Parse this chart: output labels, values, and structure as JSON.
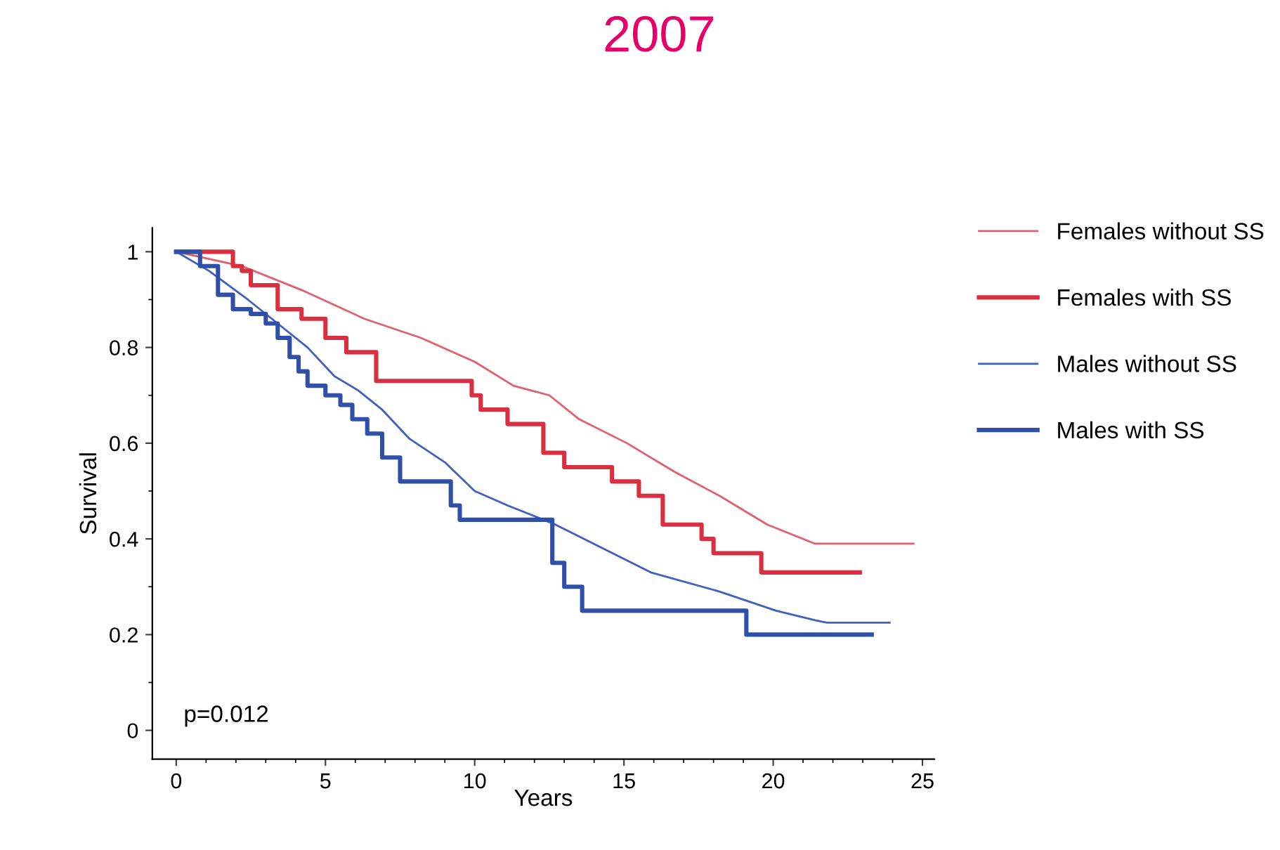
{
  "chart_data": {
    "type": "line",
    "title": "2007",
    "xlabel": "Years",
    "ylabel": "Survival",
    "annotations": [
      "p=0.012"
    ],
    "xlim": [
      -0.8,
      25.4
    ],
    "ylim": [
      -0.06,
      1.05
    ],
    "xticks": [
      0,
      5,
      10,
      15,
      20,
      25
    ],
    "yticks": [
      0,
      0.2,
      0.4,
      0.6,
      0.8,
      1
    ],
    "legend": "right",
    "grid": false,
    "series": [
      {
        "name": "Females without SS",
        "color": "#e06070",
        "x": [
          0,
          2.2,
          4.2,
          6.3,
          8.2,
          10.0,
          11.3,
          12.5,
          13.5,
          15.1,
          16.7,
          18.2,
          19.8,
          21.4,
          24.7
        ],
        "values": [
          1,
          0.97,
          0.92,
          0.86,
          0.82,
          0.77,
          0.72,
          0.7,
          0.65,
          0.6,
          0.54,
          0.49,
          0.43,
          0.39,
          0.39
        ]
      },
      {
        "name": "Females with SS",
        "type": "step",
        "color": "#d83040",
        "x": [
          0,
          1.9,
          2.2,
          2.5,
          3.4,
          4.2,
          5.0,
          5.7,
          6.7,
          9.9,
          10.2,
          11.1,
          12.3,
          13.0,
          14.6,
          15.5,
          16.3,
          17.6,
          18.0,
          19.6,
          22.9
        ],
        "values": [
          1,
          0.97,
          0.96,
          0.93,
          0.88,
          0.86,
          0.82,
          0.79,
          0.73,
          0.7,
          0.67,
          0.64,
          0.58,
          0.55,
          0.52,
          0.49,
          0.43,
          0.4,
          0.37,
          0.33,
          0.33
        ]
      },
      {
        "name": "Males without SS",
        "color": "#4060c0",
        "x": [
          0,
          1.1,
          2.4,
          3.4,
          4.4,
          5.3,
          6.1,
          6.9,
          7.8,
          9.0,
          10.0,
          11.1,
          12.3,
          12.7,
          14.3,
          15.9,
          18.2,
          20.1,
          21.4,
          21.8,
          23.9
        ],
        "values": [
          1,
          0.96,
          0.9,
          0.85,
          0.8,
          0.74,
          0.71,
          0.67,
          0.61,
          0.56,
          0.5,
          0.47,
          0.44,
          0.43,
          0.38,
          0.33,
          0.29,
          0.25,
          0.23,
          0.225,
          0.225
        ]
      },
      {
        "name": "Males with SS",
        "type": "step",
        "color": "#3050a8",
        "x": [
          0,
          0.8,
          1.4,
          1.9,
          2.5,
          3.0,
          3.4,
          3.8,
          4.1,
          4.4,
          5.0,
          5.5,
          5.9,
          6.4,
          6.9,
          7.5,
          9.2,
          9.5,
          12.6,
          13.0,
          13.6,
          19.1,
          23.3
        ],
        "values": [
          1,
          0.97,
          0.91,
          0.88,
          0.87,
          0.85,
          0.82,
          0.78,
          0.75,
          0.72,
          0.7,
          0.68,
          0.65,
          0.62,
          0.57,
          0.52,
          0.47,
          0.44,
          0.35,
          0.3,
          0.25,
          0.2,
          0.2
        ]
      }
    ]
  }
}
